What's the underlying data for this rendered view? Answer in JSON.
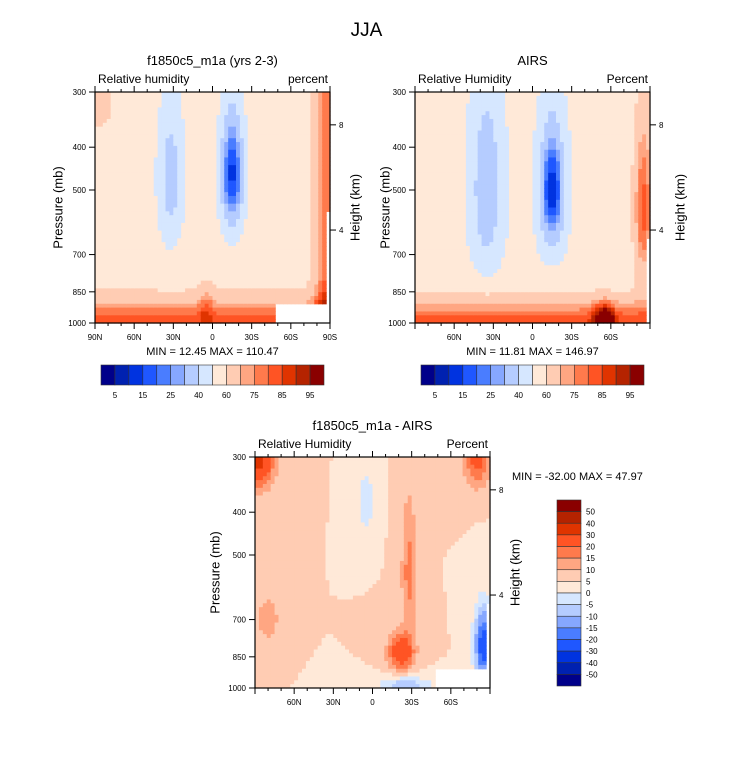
{
  "figure_title": "JJA",
  "chart_data": [
    {
      "type": "heatmap",
      "title": "f1850c5_m1a (yrs 2-3)",
      "left_string": "Relative humidity",
      "right_string": "percent",
      "xlabel": "",
      "ylabel": "Pressure (mb)",
      "ylabel_right": "Height (km)",
      "x_ticks": [
        "90N",
        "60N",
        "30N",
        "0",
        "30S",
        "60S",
        "90S"
      ],
      "x_range": [
        90,
        -90
      ],
      "y_ticks": [
        "300",
        "400",
        "500",
        "700",
        "850",
        "1000"
      ],
      "y_tick_values": [
        300,
        400,
        500,
        700,
        850,
        1000
      ],
      "y_range": [
        300,
        1000
      ],
      "y_right_ticks": [
        "8",
        "4"
      ],
      "min_max_text": "MIN =  12.45  MAX = 110.47",
      "min": 12.45,
      "max": 110.47,
      "colorbar": {
        "orientation": "horizontal",
        "tick_labels": [
          "5",
          "15",
          "25",
          "40",
          "60",
          "75",
          "85",
          "95"
        ]
      },
      "features": [
        {
          "desc": "dry minimum (blue) centered near 15S at 400-500 mb",
          "lat": -15,
          "p": 430,
          "value": 12.45
        },
        {
          "desc": "weak dry band near 30N aloft",
          "lat": 30,
          "p": 450,
          "value": 30
        },
        {
          "desc": "moist boundary layer maxima near 1000-900 mb",
          "lat": 0,
          "p": 940,
          "value": 90
        },
        {
          "desc": "high humidity at 90S aloft",
          "lat": -90,
          "p": 320,
          "value": 100
        }
      ]
    },
    {
      "type": "heatmap",
      "title": "AIRS",
      "left_string": "Relative Humidity",
      "right_string": "Percent",
      "xlabel": "",
      "ylabel": "Pressure (mb)",
      "ylabel_right": "Height (km)",
      "x_ticks": [
        "60N",
        "30N",
        "0",
        "30S",
        "60S"
      ],
      "x_range": [
        90,
        -90
      ],
      "y_ticks": [
        "300",
        "400",
        "500",
        "700",
        "850",
        "1000"
      ],
      "y_tick_values": [
        300,
        400,
        500,
        700,
        850,
        1000
      ],
      "y_range": [
        300,
        1000
      ],
      "y_right_ticks": [
        "8",
        "4"
      ],
      "min_max_text": "MIN =  11.81  MAX = 146.97",
      "min": 11.81,
      "max": 146.97,
      "colorbar": {
        "orientation": "horizontal",
        "tick_labels": [
          "5",
          "15",
          "25",
          "40",
          "60",
          "75",
          "85",
          "95"
        ]
      },
      "features": [
        {
          "desc": "dry minimum near 15S at 450-550 mb",
          "lat": -15,
          "p": 500,
          "value": 11.81
        },
        {
          "desc": "moderately dry band near 30N",
          "lat": 30,
          "p": 500,
          "value": 30
        },
        {
          "desc": "very moist near 55S surface",
          "lat": -55,
          "p": 950,
          "value": 100
        }
      ]
    },
    {
      "type": "heatmap",
      "title": "f1850c5_m1a - AIRS",
      "left_string": "Relative Humidity",
      "right_string": "Percent",
      "xlabel": "",
      "ylabel": "Pressure (mb)",
      "ylabel_right": "Height (km)",
      "x_ticks": [
        "60N",
        "30N",
        "0",
        "30S",
        "60S"
      ],
      "x_range": [
        90,
        -90
      ],
      "y_ticks": [
        "300",
        "400",
        "500",
        "700",
        "850",
        "1000"
      ],
      "y_tick_values": [
        300,
        400,
        500,
        700,
        850,
        1000
      ],
      "y_range": [
        300,
        1000
      ],
      "y_right_ticks": [
        "8",
        "4"
      ],
      "min_max_text": "MIN = -32.00  MAX =  47.97",
      "min": -32.0,
      "max": 47.97,
      "colorbar": {
        "orientation": "vertical",
        "tick_labels": [
          "50",
          "40",
          "30",
          "20",
          "15",
          "10",
          "5",
          "0",
          "-5",
          "-10",
          "-15",
          "-20",
          "-30",
          "-40",
          "-50"
        ]
      },
      "features": [
        {
          "desc": "positive bias maximum near 20S at 800-850 mb",
          "lat": -20,
          "p": 830,
          "value": 30
        },
        {
          "desc": "positive bias near 90N at 300 mb",
          "lat": 90,
          "p": 310,
          "value": 35
        },
        {
          "desc": "negative bias near 75S lower troposphere",
          "lat": -75,
          "p": 850,
          "value": -25
        }
      ]
    }
  ],
  "colors": {
    "abs_levels": [
      "#00008a",
      "#0021b0",
      "#0033e0",
      "#1f57ff",
      "#4a7dff",
      "#86a7ff",
      "#b5ccff",
      "#d6e7ff",
      "#ffe9d8",
      "#ffccb3",
      "#ffa682",
      "#ff7a4c",
      "#ff5424",
      "#e03400",
      "#b52300",
      "#8a0000"
    ],
    "diff_levels": [
      "#00008a",
      "#0021b0",
      "#0033e0",
      "#1f57ff",
      "#4a7dff",
      "#86a7ff",
      "#b5ccff",
      "#d6e7ff",
      "#ffe9d8",
      "#ffccb3",
      "#ffa682",
      "#ff7a4c",
      "#ff5424",
      "#e03400",
      "#b52300",
      "#8a0000"
    ]
  }
}
